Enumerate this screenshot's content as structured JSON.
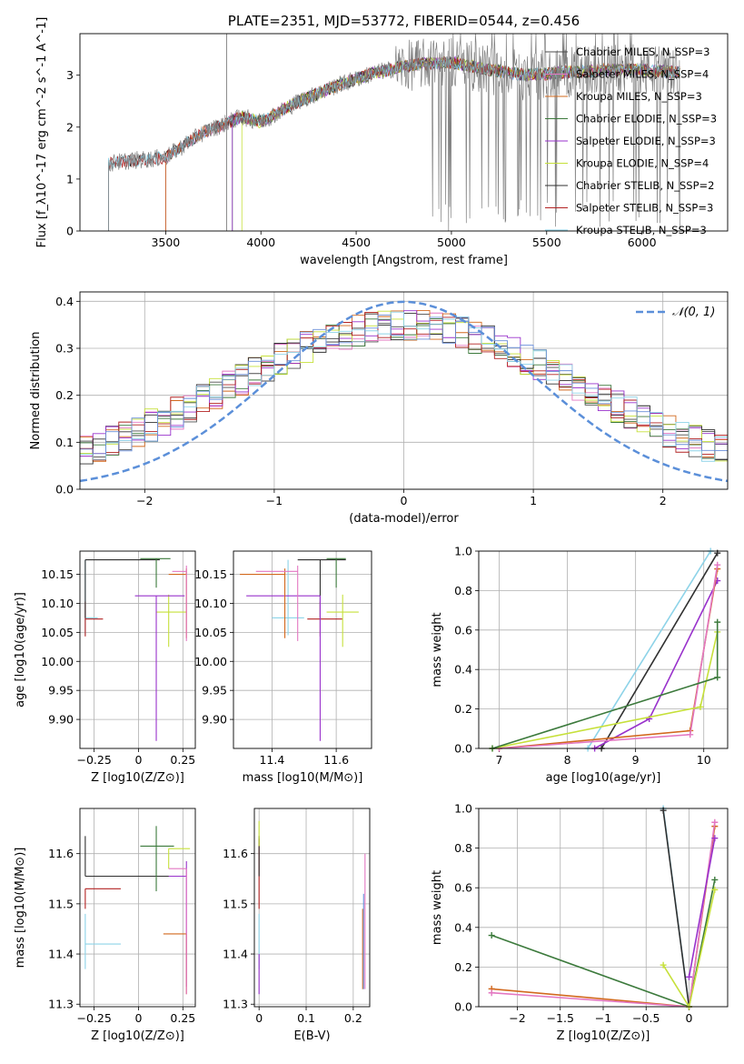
{
  "chart_data": [
    {
      "id": "spectrum",
      "type": "line",
      "title": "PLATE=2351, MJD=53772, FIBERID=0544, z=0.456",
      "xlabel": "wavelength [Angstrom, rest frame]",
      "ylabel": "Flux [f_λ10^-17 erg cm^-2 s^-1 A^-1]",
      "xlim": [
        3050,
        6450
      ],
      "ylim": [
        0,
        3.8
      ],
      "xticks": [
        3500,
        4000,
        4500,
        5000,
        5500,
        6000
      ],
      "yticks": [
        0,
        1,
        2,
        3
      ],
      "grid": false,
      "legend_position": "top-right",
      "data_start": 3200,
      "data_end": 6200,
      "continuum": {
        "x": [
          3200,
          3300,
          3400,
          3500,
          3700,
          3900,
          4000,
          4200,
          4400,
          4600,
          4800,
          5000,
          5200,
          5400,
          5600,
          5800,
          6000,
          6200
        ],
        "y": [
          1.3,
          1.35,
          1.38,
          1.42,
          1.9,
          2.2,
          2.1,
          2.5,
          2.8,
          3.05,
          3.2,
          3.25,
          3.1,
          3.0,
          3.05,
          3.1,
          3.1,
          3.05
        ]
      },
      "series": [
        {
          "name": "Chabrier MILES, N_SSP=3",
          "color": "#4b4b4b",
          "start": 3500
        },
        {
          "name": "Salpeter MILES, N_SSP=4",
          "color": "#e377c2",
          "start": 3500
        },
        {
          "name": "Kroupa MILES, N_SSP=3",
          "color": "#d2691e",
          "start": 3500
        },
        {
          "name": "Chabrier ELODIE, N_SSP=3",
          "color": "#3c7a3c",
          "start": 3850
        },
        {
          "name": "Salpeter ELODIE, N_SSP=3",
          "color": "#9932cc",
          "start": 3850
        },
        {
          "name": "Kroupa ELODIE, N_SSP=4",
          "color": "#c6e03a",
          "start": 3900
        },
        {
          "name": "Chabrier STELIB, N_SSP=2",
          "color": "#303030",
          "start": 3200
        },
        {
          "name": "Salpeter STELIB, N_SSP=3",
          "color": "#b22222",
          "start": 3200
        },
        {
          "name": "Kroupa STELIB, N_SSP=3",
          "color": "#8dd3e8",
          "start": 3200
        }
      ],
      "data_color": "#808080"
    },
    {
      "id": "residuals",
      "type": "line",
      "xlabel": "(data-model)/error",
      "ylabel": "Normed distribution",
      "xlim": [
        -2.5,
        2.5
      ],
      "ylim": [
        0,
        0.42
      ],
      "xticks": [
        -2,
        -1,
        0,
        1,
        2
      ],
      "yticks": [
        0.0,
        0.1,
        0.2,
        0.3,
        0.4
      ],
      "grid": true,
      "legend_position": "top-right",
      "gaussian_label": "𝒩(0, 1)",
      "gaussian_color": "#5b8fd9",
      "bin_width": 0.1,
      "hist_colors": [
        "#4b4b4b",
        "#e377c2",
        "#d2691e",
        "#3c7a3c",
        "#9932cc",
        "#c6e03a",
        "#303030",
        "#b22222",
        "#8dd3e8",
        "#6a8fd9"
      ]
    },
    {
      "id": "z-age",
      "type": "scatter",
      "xlabel": "Z [log10(Z/Z⊙)]",
      "ylabel": "age [log10(age/yr)]",
      "xlim": [
        -0.33,
        0.32
      ],
      "ylim": [
        9.85,
        10.19
      ],
      "xticks": [
        -0.25,
        0.0,
        0.25
      ],
      "yticks": [
        9.9,
        9.95,
        10.0,
        10.05,
        10.1,
        10.15
      ],
      "grid": true,
      "points": [
        {
          "x": -0.3,
          "y": 10.075,
          "xerr": [
            0.0,
            0.07
          ],
          "yerr": [
            0.03,
            0.1
          ],
          "color": "#8dd3e8"
        },
        {
          "x": -0.3,
          "y": 10.073,
          "xerr": [
            0.0,
            0.1
          ],
          "yerr": [
            0.03,
            0.03
          ],
          "color": "#b22222"
        },
        {
          "x": -0.3,
          "y": 10.175,
          "xerr": [
            0.0,
            0.42
          ],
          "yerr": [
            0.1,
            0.0
          ],
          "color": "#303030"
        },
        {
          "x": 0.1,
          "y": 10.177,
          "xerr": [
            0.09,
            0.08
          ],
          "yerr": [
            0.05,
            0.0
          ],
          "color": "#3c7a3c"
        },
        {
          "x": 0.17,
          "y": 10.085,
          "xerr": [
            0.07,
            0.1
          ],
          "yerr": [
            0.06,
            0.03
          ],
          "color": "#c6e03a"
        },
        {
          "x": 0.1,
          "y": 10.113,
          "xerr": [
            0.12,
            0.16
          ],
          "yerr": [
            0.25,
            0.0
          ],
          "color": "#9932cc"
        },
        {
          "x": 0.27,
          "y": 10.15,
          "xerr": [
            0.1,
            0.0
          ],
          "yerr": [
            0.11,
            0.01
          ],
          "color": "#d2691e"
        },
        {
          "x": 0.27,
          "y": 10.155,
          "xerr": [
            0.08,
            0.0
          ],
          "yerr": [
            0.12,
            0.01
          ],
          "color": "#e377c2"
        }
      ]
    },
    {
      "id": "mass-age",
      "type": "scatter",
      "xlabel": "mass [log10(M/M⊙)]",
      "ylabel": "",
      "xlim": [
        11.28,
        11.71
      ],
      "ylim": [
        9.85,
        10.19
      ],
      "xticks": [
        11.4,
        11.6
      ],
      "yticks": [
        9.9,
        9.95,
        10.0,
        10.05,
        10.1,
        10.15
      ],
      "grid": true,
      "points": [
        {
          "x": 11.45,
          "y": 10.075,
          "xerr": [
            0.05,
            0.05
          ],
          "yerr": [
            0.03,
            0.1
          ],
          "color": "#8dd3e8"
        },
        {
          "x": 11.55,
          "y": 10.073,
          "xerr": [
            0.04,
            0.07
          ],
          "yerr": [
            0.03,
            0.03
          ],
          "color": "#b22222"
        },
        {
          "x": 11.55,
          "y": 10.175,
          "xerr": [
            0.07,
            0.08
          ],
          "yerr": [
            0.1,
            0.0
          ],
          "color": "#303030"
        },
        {
          "x": 11.6,
          "y": 10.177,
          "xerr": [
            0.03,
            0.03
          ],
          "yerr": [
            0.05,
            0.0
          ],
          "color": "#3c7a3c"
        },
        {
          "x": 11.62,
          "y": 10.085,
          "xerr": [
            0.05,
            0.05
          ],
          "yerr": [
            0.06,
            0.03
          ],
          "color": "#c6e03a"
        },
        {
          "x": 11.55,
          "y": 10.113,
          "xerr": [
            0.23,
            0.0
          ],
          "yerr": [
            0.25,
            0.0
          ],
          "color": "#9932cc"
        },
        {
          "x": 11.44,
          "y": 10.15,
          "xerr": [
            0.14,
            0.0
          ],
          "yerr": [
            0.11,
            0.01
          ],
          "color": "#d2691e"
        },
        {
          "x": 11.48,
          "y": 10.155,
          "xerr": [
            0.13,
            0.0
          ],
          "yerr": [
            0.12,
            0.01
          ],
          "color": "#e377c2"
        }
      ]
    },
    {
      "id": "age-weight",
      "type": "line",
      "xlabel": "age [log10(age/yr)]",
      "ylabel": "mass weight",
      "xlim": [
        6.7,
        10.35
      ],
      "ylim": [
        0,
        1.0
      ],
      "xticks": [
        7,
        8,
        9,
        10
      ],
      "yticks": [
        0.0,
        0.2,
        0.4,
        0.6,
        0.8,
        1.0
      ],
      "grid": true,
      "series": [
        {
          "color": "#8dd3e8",
          "x": [
            8.3,
            10.1
          ],
          "y": [
            0.0,
            1.0
          ]
        },
        {
          "color": "#303030",
          "x": [
            8.5,
            10.2
          ],
          "y": [
            0.0,
            0.99
          ]
        },
        {
          "color": "#9932cc",
          "x": [
            8.4,
            9.2,
            10.2
          ],
          "y": [
            0.0,
            0.15,
            0.85
          ]
        },
        {
          "color": "#d2691e",
          "x": [
            7.0,
            9.8,
            10.2
          ],
          "y": [
            0.0,
            0.09,
            0.91
          ]
        },
        {
          "color": "#e377c2",
          "x": [
            7.0,
            9.8,
            10.2
          ],
          "y": [
            0.0,
            0.07,
            0.93
          ]
        },
        {
          "color": "#c6e03a",
          "x": [
            6.9,
            9.95,
            10.2
          ],
          "y": [
            0.0,
            0.21,
            0.59
          ]
        },
        {
          "color": "#3c7a3c",
          "x": [
            6.9,
            10.2,
            10.2
          ],
          "y": [
            0.0,
            0.36,
            0.64
          ]
        }
      ]
    },
    {
      "id": "z-mass",
      "type": "scatter",
      "xlabel": "Z [log10(Z/Z⊙)]",
      "ylabel": "mass [log10(M/M⊙)]",
      "xlim": [
        -0.33,
        0.32
      ],
      "ylim": [
        11.295,
        11.69
      ],
      "xticks": [
        -0.25,
        0.0,
        0.25
      ],
      "yticks": [
        11.3,
        11.4,
        11.5,
        11.6
      ],
      "grid": true,
      "points": [
        {
          "x": -0.3,
          "y": 11.42,
          "xerr": [
            0.0,
            0.2
          ],
          "yerr": [
            0.05,
            0.06
          ],
          "color": "#8dd3e8"
        },
        {
          "x": -0.3,
          "y": 11.53,
          "xerr": [
            0.0,
            0.2
          ],
          "yerr": [
            0.04,
            0.0
          ],
          "color": "#b22222"
        },
        {
          "x": -0.3,
          "y": 11.555,
          "xerr": [
            0.0,
            0.55
          ],
          "yerr": [
            0.0,
            0.08
          ],
          "color": "#303030"
        },
        {
          "x": 0.1,
          "y": 11.615,
          "xerr": [
            0.09,
            0.1
          ],
          "yerr": [
            0.09,
            0.04
          ],
          "color": "#3c7a3c"
        },
        {
          "x": 0.17,
          "y": 11.61,
          "xerr": [
            0.0,
            0.12
          ],
          "yerr": [
            0.04,
            0.0
          ],
          "color": "#c6e03a"
        },
        {
          "x": 0.27,
          "y": 11.555,
          "xerr": [
            0.1,
            0.0
          ],
          "yerr": [
            0.22,
            0.03
          ],
          "color": "#9932cc"
        },
        {
          "x": 0.27,
          "y": 11.44,
          "xerr": [
            0.13,
            0.0
          ],
          "yerr": [
            0.12,
            0.0
          ],
          "color": "#d2691e"
        },
        {
          "x": 0.27,
          "y": 11.57,
          "xerr": [
            0.1,
            0.0
          ],
          "yerr": [
            0.25,
            0.0
          ],
          "color": "#e377c2"
        }
      ]
    },
    {
      "id": "ebv-mass",
      "type": "scatter",
      "xlabel": "E(B-V)",
      "ylabel": "",
      "xlim": [
        -0.01,
        0.235
      ],
      "ylim": [
        11.295,
        11.69
      ],
      "xticks": [
        0.0,
        0.1,
        0.2
      ],
      "yticks": [
        11.3,
        11.4,
        11.5,
        11.6
      ],
      "grid": true,
      "points": [
        {
          "x": 0.0,
          "y": 11.42,
          "xerr": [
            0.0,
            0.0
          ],
          "yerr": [
            0.05,
            0.06
          ],
          "color": "#8dd3e8"
        },
        {
          "x": 0.0,
          "y": 11.53,
          "xerr": [
            0.0,
            0.0
          ],
          "yerr": [
            0.04,
            0.1
          ],
          "color": "#b22222"
        },
        {
          "x": 0.0,
          "y": 11.555,
          "xerr": [
            0.0,
            0.0
          ],
          "yerr": [
            0.0,
            0.08
          ],
          "color": "#303030"
        },
        {
          "x": 0.0,
          "y": 11.615,
          "xerr": [
            0.0,
            0.0
          ],
          "yerr": [
            0.0,
            0.05
          ],
          "color": "#c6e03a"
        },
        {
          "x": 0.0,
          "y": 11.4,
          "xerr": [
            0.0,
            0.0
          ],
          "yerr": [
            0.08,
            0.0
          ],
          "color": "#9932cc"
        },
        {
          "x": 0.22,
          "y": 11.44,
          "xerr": [
            0.0,
            0.0
          ],
          "yerr": [
            0.11,
            0.05
          ],
          "color": "#d2691e"
        },
        {
          "x": 0.225,
          "y": 11.5,
          "xerr": [
            0.0,
            0.0
          ],
          "yerr": [
            0.17,
            0.1
          ],
          "color": "#e377c2"
        },
        {
          "x": 0.222,
          "y": 11.45,
          "xerr": [
            0.0,
            0.0
          ],
          "yerr": [
            0.12,
            0.07
          ],
          "color": "#6a8fd9"
        }
      ]
    },
    {
      "id": "z-weight",
      "type": "line",
      "xlabel": "Z [log10(Z/Z⊙)]",
      "ylabel": "mass weight",
      "xlim": [
        -2.45,
        0.45
      ],
      "ylim": [
        0,
        1.0
      ],
      "xticks": [
        -2.0,
        -1.5,
        -1.0,
        -0.5,
        0.0
      ],
      "yticks": [
        0.0,
        0.2,
        0.4,
        0.6,
        0.8,
        1.0
      ],
      "grid": true,
      "series": [
        {
          "color": "#3c7a3c",
          "x": [
            -2.3,
            0.0,
            0.3
          ],
          "y": [
            0.36,
            0.0,
            0.64
          ]
        },
        {
          "color": "#d2691e",
          "x": [
            -2.3,
            0.0,
            0.3
          ],
          "y": [
            0.09,
            0.0,
            0.91
          ]
        },
        {
          "color": "#e377c2",
          "x": [
            -2.3,
            0.0,
            0.3
          ],
          "y": [
            0.07,
            0.0,
            0.93
          ]
        },
        {
          "color": "#8dd3e8",
          "x": [
            -0.3,
            0.0
          ],
          "y": [
            1.0,
            0.0
          ]
        },
        {
          "color": "#303030",
          "x": [
            -0.3,
            0.0
          ],
          "y": [
            0.99,
            0.0
          ]
        },
        {
          "color": "#c6e03a",
          "x": [
            -0.3,
            0.0,
            0.3
          ],
          "y": [
            0.21,
            0.0,
            0.59
          ]
        },
        {
          "color": "#9932cc",
          "x": [
            0.0,
            0.3
          ],
          "y": [
            0.15,
            0.85
          ]
        }
      ]
    }
  ]
}
